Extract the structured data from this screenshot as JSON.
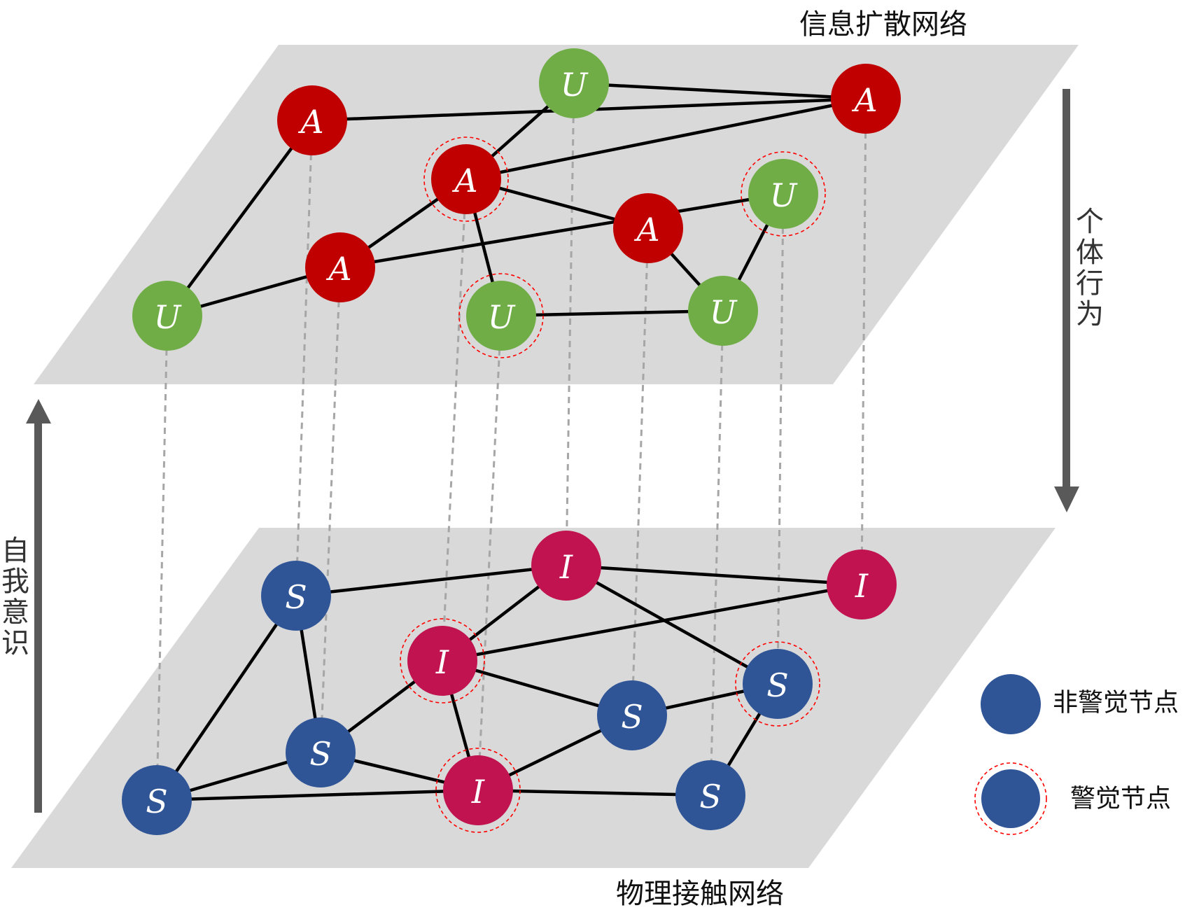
{
  "layers": {
    "top_title": "信息扩散网络",
    "bottom_title": "物理接触网络"
  },
  "arrows": {
    "right_label": "个体行为",
    "left_label": "自我意识"
  },
  "legend": {
    "unaware_label": "非警觉节点",
    "aware_label": "警觉节点"
  },
  "colors": {
    "plane": "#d9d9d9",
    "aware_A": "#c00000",
    "unaware_U": "#70ad47",
    "infected_I": "#c0134f",
    "susceptible_S": "#2f5597",
    "edge": "#000000",
    "interlayer": "#a6a6a6",
    "arrow": "#595959",
    "ring": "#ff0000"
  },
  "top_nodes": [
    {
      "id": "t1",
      "label": "A",
      "state": "aware"
    },
    {
      "id": "t2",
      "label": "U",
      "state": "unaware"
    },
    {
      "id": "t3",
      "label": "A",
      "state": "aware"
    },
    {
      "id": "t4",
      "label": "A",
      "state": "aware",
      "ringed": true
    },
    {
      "id": "t5",
      "label": "U",
      "state": "unaware",
      "ringed": true
    },
    {
      "id": "t6",
      "label": "A",
      "state": "aware"
    },
    {
      "id": "t7",
      "label": "A",
      "state": "aware"
    },
    {
      "id": "t8",
      "label": "U",
      "state": "unaware"
    },
    {
      "id": "t9",
      "label": "U",
      "state": "unaware",
      "ringed": true
    },
    {
      "id": "t10",
      "label": "U",
      "state": "unaware"
    }
  ],
  "bottom_nodes": [
    {
      "id": "b1",
      "label": "S",
      "state": "susceptible"
    },
    {
      "id": "b2",
      "label": "I",
      "state": "infected"
    },
    {
      "id": "b3",
      "label": "I",
      "state": "infected"
    },
    {
      "id": "b4",
      "label": "I",
      "state": "infected",
      "ringed": true
    },
    {
      "id": "b5",
      "label": "S",
      "state": "susceptible",
      "ringed": true
    },
    {
      "id": "b6",
      "label": "S",
      "state": "susceptible"
    },
    {
      "id": "b7",
      "label": "S",
      "state": "susceptible"
    },
    {
      "id": "b8",
      "label": "S",
      "state": "susceptible"
    },
    {
      "id": "b9",
      "label": "I",
      "state": "infected",
      "ringed": true
    },
    {
      "id": "b10",
      "label": "S",
      "state": "susceptible"
    }
  ],
  "top_edges": [
    [
      "t1",
      "t3"
    ],
    [
      "t1",
      "t8"
    ],
    [
      "t2",
      "t3"
    ],
    [
      "t2",
      "t4"
    ],
    [
      "t4",
      "t3"
    ],
    [
      "t4",
      "t6"
    ],
    [
      "t4",
      "t9"
    ],
    [
      "t4",
      "t7"
    ],
    [
      "t7",
      "t5"
    ],
    [
      "t6",
      "t10"
    ],
    [
      "t5",
      "t10"
    ],
    [
      "t9",
      "t10"
    ],
    [
      "t8",
      "t7"
    ]
  ],
  "bottom_edges": [
    [
      "b1",
      "b2"
    ],
    [
      "b1",
      "b7"
    ],
    [
      "b1",
      "b8"
    ],
    [
      "b2",
      "b3"
    ],
    [
      "b2",
      "b4"
    ],
    [
      "b2",
      "b5"
    ],
    [
      "b4",
      "b3"
    ],
    [
      "b4",
      "b6"
    ],
    [
      "b4",
      "b7"
    ],
    [
      "b4",
      "b9"
    ],
    [
      "b6",
      "b5"
    ],
    [
      "b6",
      "b9"
    ],
    [
      "b5",
      "b10"
    ],
    [
      "b7",
      "b8"
    ],
    [
      "b7",
      "b9"
    ],
    [
      "b8",
      "b9"
    ],
    [
      "b9",
      "b10"
    ]
  ],
  "interlayer_links": [
    [
      "t1",
      "b1"
    ],
    [
      "t2",
      "b2"
    ],
    [
      "t3",
      "b3"
    ],
    [
      "t4",
      "b4"
    ],
    [
      "t5",
      "b5"
    ],
    [
      "t6",
      "b6"
    ],
    [
      "t7",
      "b7"
    ],
    [
      "t8",
      "b8"
    ],
    [
      "t9",
      "b9"
    ],
    [
      "t10",
      "b10"
    ]
  ]
}
